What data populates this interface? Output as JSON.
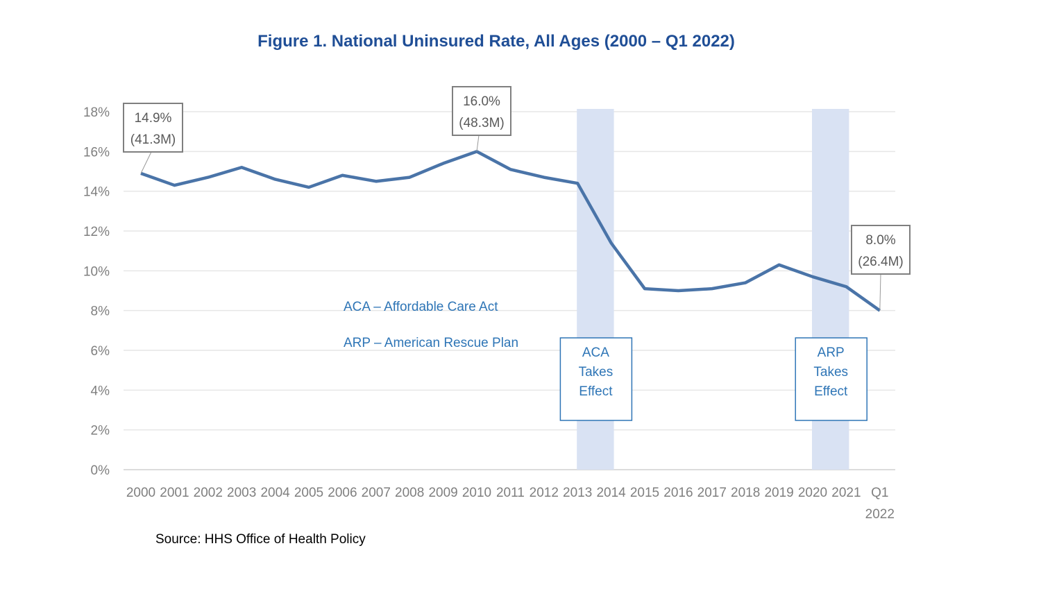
{
  "chart_data": {
    "type": "line",
    "title": "Figure 1. National Uninsured Rate, All Ages (2000 – Q1 2022)",
    "source": "Source: HHS Office of Health Policy",
    "xlabel": "",
    "ylabel": "",
    "categories": [
      "2000",
      "2001",
      "2002",
      "2003",
      "2004",
      "2005",
      "2006",
      "2007",
      "2008",
      "2009",
      "2010",
      "2011",
      "2012",
      "2013",
      "2014",
      "2015",
      "2016",
      "2017",
      "2018",
      "2019",
      "2020",
      "2021",
      "Q1 2022"
    ],
    "ylim": [
      0,
      18
    ],
    "yticks": [
      "0%",
      "2%",
      "4%",
      "6%",
      "8%",
      "10%",
      "12%",
      "14%",
      "16%",
      "18%"
    ],
    "grid": true,
    "series": [
      {
        "values": [
          14.9,
          14.3,
          14.7,
          15.2,
          14.6,
          14.2,
          14.8,
          14.5,
          14.7,
          15.4,
          16.0,
          15.1,
          14.7,
          14.4,
          11.4,
          9.1,
          9.0,
          9.1,
          9.4,
          10.3,
          9.7,
          9.2,
          8.0
        ]
      }
    ],
    "callouts": [
      {
        "category": "2000",
        "line1": "14.9%",
        "line2": "(41.3M)"
      },
      {
        "category": "2010",
        "line1": "16.0%",
        "line2": "(48.3M)"
      },
      {
        "category": "Q1 2022",
        "line1": "8.0%",
        "line2": "(26.4M)"
      }
    ],
    "bands": [
      {
        "from": "2013",
        "to": "2014",
        "label": [
          "ACA",
          "Takes",
          "Effect"
        ]
      },
      {
        "from": "2020",
        "to": "2021",
        "label": [
          "ARP",
          "Takes",
          "Effect"
        ]
      }
    ],
    "legend_notes": [
      "ACA – Affordable Care Act",
      "ARP – American Rescue Plan"
    ],
    "colors": {
      "line": "#4a74a8",
      "title": "#1f4e96",
      "band": "#d9e2f3",
      "note": "#2e75b6",
      "axis_text": "#7f7f7f"
    }
  }
}
